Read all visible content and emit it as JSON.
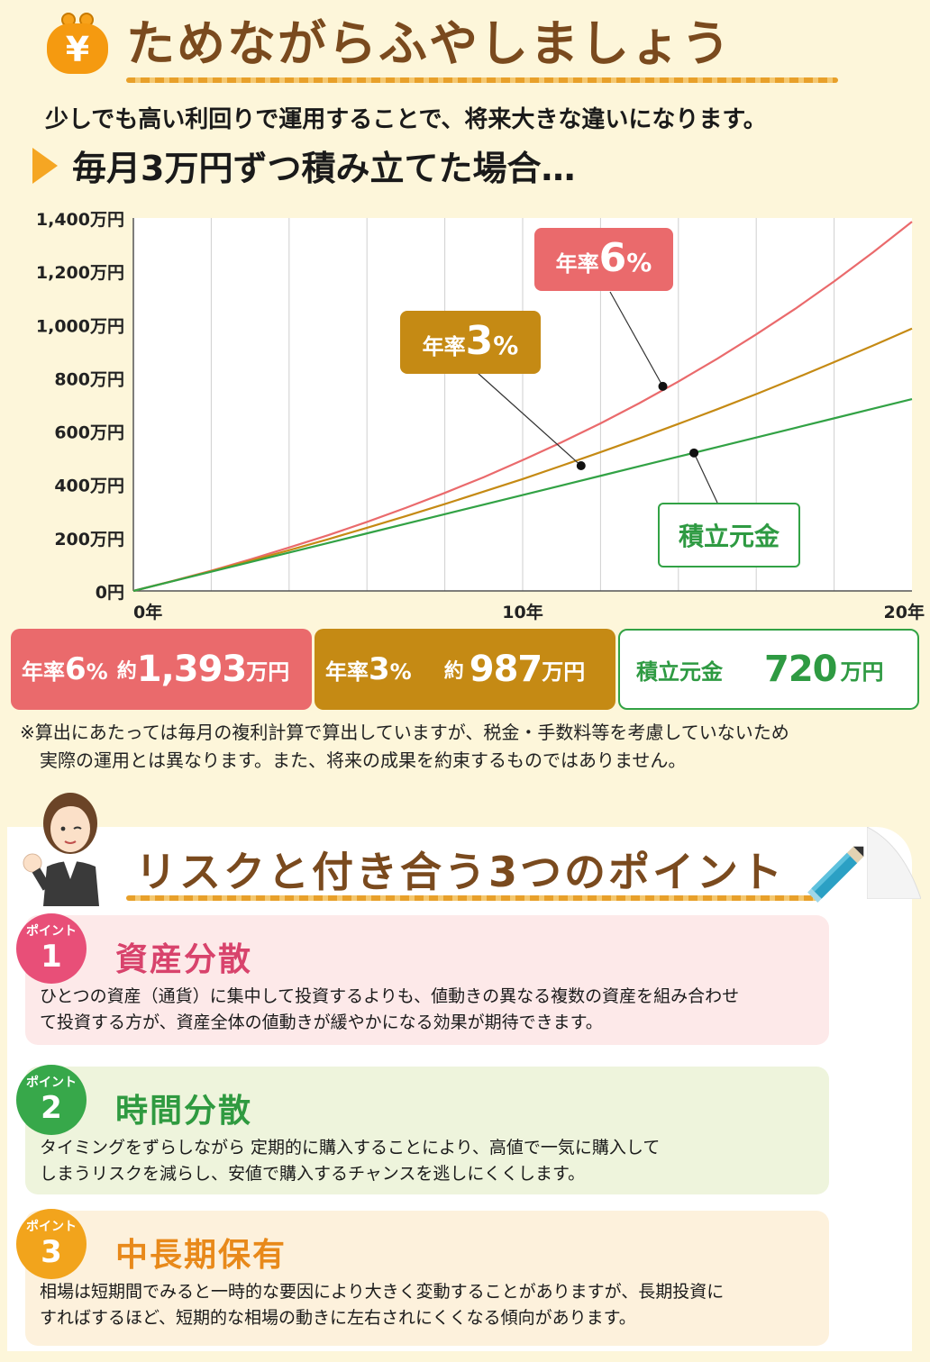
{
  "header": {
    "badge_symbol": "¥",
    "title": "ためながらふやしましょう",
    "intro": "少しでも高い利回りで運用することで、将来大きな違いになります。",
    "subheading": "毎月3万円ずつ積み立てた場合…"
  },
  "colors": {
    "rate6": "#ea6a6c",
    "rate3": "#c58a14",
    "principal": "#32a245",
    "title_brown": "#7a4a1e"
  },
  "chart_labels": {
    "rate6_label": "年率",
    "rate6_num": "6",
    "rate3_label": "年率",
    "rate3_num": "3",
    "pct": "%",
    "principal": "積立元金"
  },
  "chart_data": {
    "type": "line",
    "x": [
      0,
      1,
      2,
      3,
      4,
      5,
      6,
      7,
      8,
      9,
      10,
      11,
      12,
      13,
      14,
      15,
      16,
      17,
      18,
      19,
      20
    ],
    "xlim": [
      0,
      20
    ],
    "ylim": [
      0,
      1400
    ],
    "x_ticks": [
      0,
      10,
      20
    ],
    "x_tick_labels": [
      "0年",
      "10年",
      "20年"
    ],
    "y_ticks": [
      0,
      200,
      400,
      600,
      800,
      1000,
      1200,
      1400
    ],
    "y_tick_labels": [
      "0円",
      "200万円",
      "400万円",
      "600万円",
      "800万円",
      "1,000万円",
      "1,200万円",
      "1,400万円"
    ],
    "grid": "vertical",
    "series": [
      {
        "name": "年率6%",
        "values": [
          0,
          37,
          76,
          118,
          163,
          209,
          259,
          312,
          368,
          427,
          491,
          558,
          629,
          705,
          786,
          872,
          963,
          1059,
          1162,
          1271,
          1386
        ]
      },
      {
        "name": "年率3%",
        "values": [
          0,
          36.5,
          74,
          113,
          153,
          194,
          237,
          281,
          326,
          373,
          420,
          470,
          521,
          573,
          627,
          682,
          739,
          798,
          859,
          921,
          985
        ]
      },
      {
        "name": "積立元金",
        "values": [
          0,
          36,
          72,
          108,
          144,
          180,
          216,
          252,
          288,
          324,
          360,
          396,
          432,
          468,
          504,
          540,
          576,
          612,
          648,
          684,
          720
        ]
      }
    ],
    "callout_points": [
      {
        "series": "年率6%",
        "x": 13.6,
        "y": 768
      },
      {
        "series": "年率3%",
        "x": 11.5,
        "y": 470
      },
      {
        "series": "積立元金",
        "x": 14.4,
        "y": 518
      }
    ]
  },
  "summary": {
    "rate6": {
      "label": "年率",
      "pct": "6",
      "pct_sign": "%",
      "approx": "約",
      "value": "1,393",
      "unit": "万円"
    },
    "rate3": {
      "label": "年率",
      "pct": "3",
      "pct_sign": "%",
      "approx": "約",
      "value": "987",
      "unit": "万円"
    },
    "principal": {
      "label": "積立元金",
      "value": "720",
      "unit": "万円"
    }
  },
  "note": {
    "line1": "※算出にあたっては毎月の複利計算で算出していますが、税金・手数料等を考慮していないため",
    "line2": "実際の運用とは異なります。また、将来の成果を約束するものではありません。"
  },
  "risk": {
    "title": "リスクと付き合う3つのポイント",
    "points": [
      {
        "badge_label": "ポイント",
        "number": "1",
        "title": "資産分散",
        "line1": "ひとつの資産（通貨）に集中して投資するよりも、値動きの異なる複数の資産を組み合わせ",
        "line2": "て投資する方が、資産全体の値動きが緩やかになる効果が期待できます。"
      },
      {
        "badge_label": "ポイント",
        "number": "2",
        "title": "時間分散",
        "line1": "タイミングをずらしながら 定期的に購入することにより、高値で一気に購入して",
        "line2": "しまうリスクを減らし、安値で購入するチャンスを逃しにくくします。"
      },
      {
        "badge_label": "ポイント",
        "number": "3",
        "title": "中長期保有",
        "line1": "相場は短期間でみると一時的な要因により大きく変動することがありますが、長期投資に",
        "line2": "すればするほど、短期的な相場の動きに左右されにくくなる傾向があります。"
      }
    ]
  },
  "icons": {
    "badge": "yen-purse-icon",
    "character": "woman-ok-gesture-icon",
    "pencil": "pencil-icon"
  }
}
